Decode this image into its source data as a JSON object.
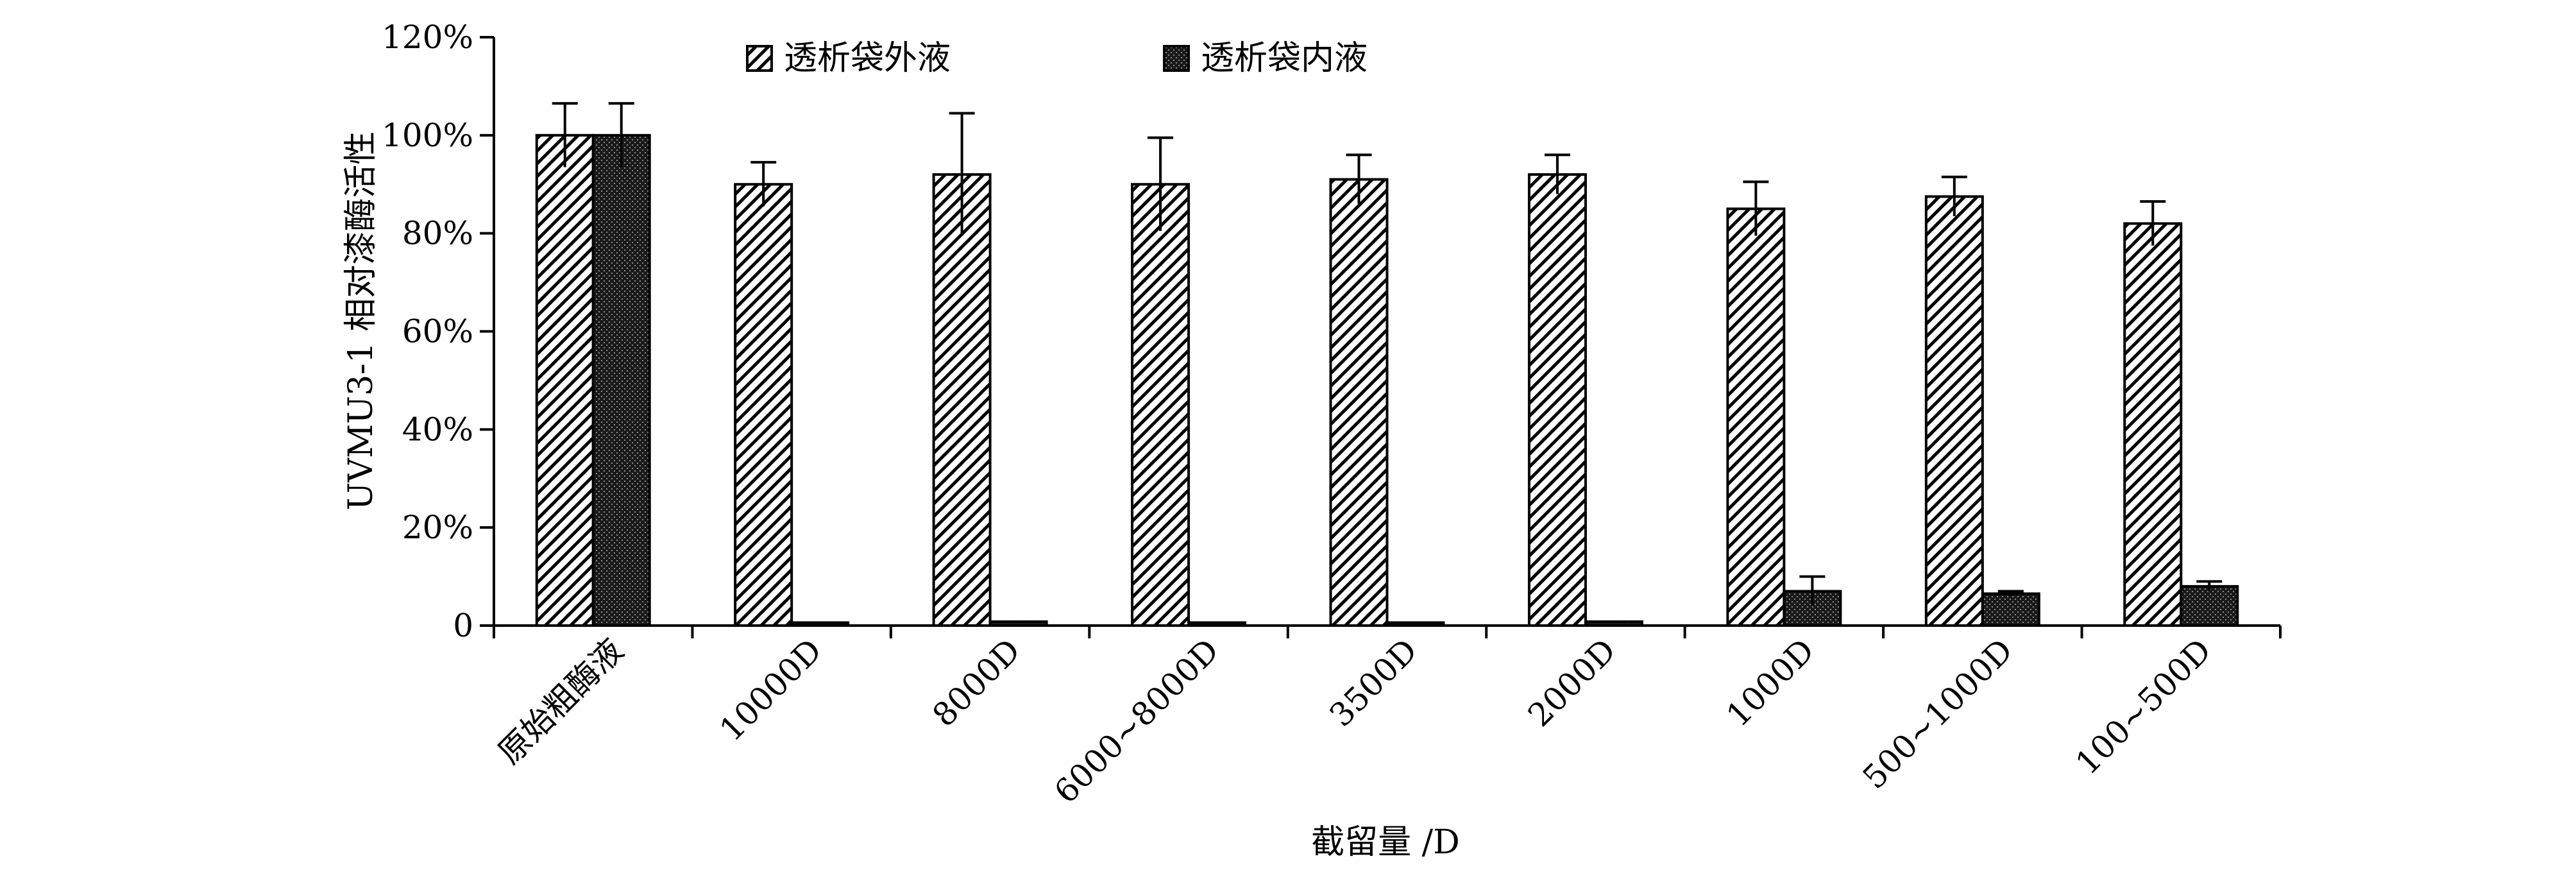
{
  "chart_data": {
    "type": "bar",
    "categories": [
      "原始粗酶液",
      "10000D",
      "8000D",
      "6000~8000D",
      "3500D",
      "2000D",
      "1000D",
      "500~1000D",
      "100~500D"
    ],
    "series": [
      {
        "name": "透析袋外液",
        "pattern": "diagonal-hatch",
        "values": [
          100,
          90,
          92,
          90,
          91,
          92,
          85,
          87.5,
          82
        ],
        "errors": [
          6.5,
          4.5,
          12.5,
          9.5,
          5,
          4,
          5.5,
          4,
          4.5
        ]
      },
      {
        "name": "透析袋内液",
        "pattern": "dense-dots",
        "values": [
          100,
          0.6,
          0.8,
          0.6,
          0.6,
          0.8,
          7,
          6.5,
          8
        ],
        "errors": [
          6.5,
          0,
          0,
          0,
          0,
          0,
          3,
          0.5,
          1
        ]
      }
    ],
    "xlabel": "截留量 /D",
    "ylabel": "UVMU3-1 相对漆酶活性",
    "yticks": [
      "0",
      "20%",
      "40%",
      "60%",
      "80%",
      "100%",
      "120%"
    ],
    "ylim": [
      0,
      120
    ],
    "grid": false,
    "legend_position": "top-center"
  }
}
